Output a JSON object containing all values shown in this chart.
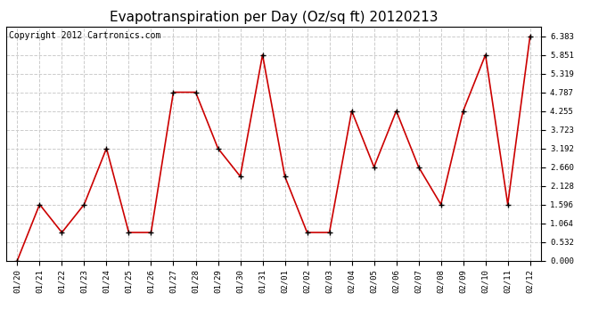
{
  "title": "Evapotranspiration per Day (Oz/sq ft) 20120213",
  "copyright": "Copyright 2012 Cartronics.com",
  "dates": [
    "01/20",
    "01/21",
    "01/22",
    "01/23",
    "01/24",
    "01/25",
    "01/26",
    "01/27",
    "01/28",
    "01/29",
    "01/30",
    "01/31",
    "02/01",
    "02/02",
    "02/03",
    "02/04",
    "02/05",
    "02/06",
    "02/07",
    "02/08",
    "02/09",
    "02/10",
    "02/11",
    "02/12"
  ],
  "values": [
    0.0,
    1.596,
    0.798,
    1.596,
    3.192,
    0.798,
    0.798,
    4.787,
    4.787,
    3.192,
    2.394,
    5.851,
    2.394,
    0.798,
    0.798,
    4.255,
    2.66,
    4.255,
    2.66,
    1.596,
    4.255,
    5.851,
    1.596,
    6.383
  ],
  "line_color": "#cc0000",
  "marker": "+",
  "marker_size": 4,
  "marker_color": "#000000",
  "background_color": "#ffffff",
  "grid_color": "#cccccc",
  "yticks": [
    0.0,
    0.532,
    1.064,
    1.596,
    2.128,
    2.66,
    3.192,
    3.723,
    4.255,
    4.787,
    5.319,
    5.851,
    6.383
  ],
  "ylim": [
    0.0,
    6.65
  ],
  "title_fontsize": 11,
  "copyright_fontsize": 7
}
